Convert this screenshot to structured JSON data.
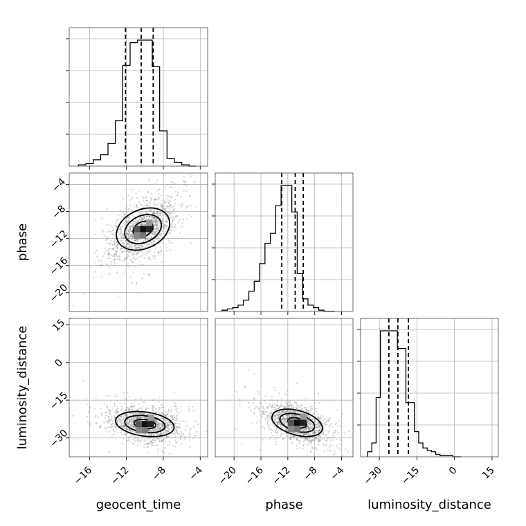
{
  "chart_data": {
    "type": "corner",
    "parameters": [
      "geocent_time",
      "phase",
      "luminosity_distance"
    ],
    "axis_labels": {
      "geocent_time": "geocent_time",
      "phase": "phase",
      "luminosity_distance": "luminosity_distance"
    },
    "ranges": {
      "geocent_time": [
        -18.2,
        -3.2
      ],
      "phase": [
        -22.8,
        -2.3
      ],
      "luminosity_distance": [
        -37.5,
        17.5
      ]
    },
    "ticks": {
      "geocent_time": [
        -16,
        -12,
        -8,
        -4
      ],
      "phase": [
        -20,
        -16,
        -12,
        -8,
        -4
      ],
      "luminosity_distance": [
        -30,
        -15,
        0,
        15
      ]
    },
    "tick_labels": {
      "geocent_time": [
        "−16",
        "−12",
        "−8",
        "−4"
      ],
      "phase": [
        "−20",
        "−16",
        "−12",
        "−8",
        "−4"
      ],
      "luminosity_distance": [
        "−30",
        "−15",
        "0",
        "15"
      ]
    },
    "histograms": {
      "geocent_time": {
        "bin_edges": [
          -17.2,
          -16.4,
          -15.6,
          -14.8,
          -14.0,
          -13.2,
          -12.4,
          -11.6,
          -10.8,
          -10.0,
          -9.2,
          -8.4,
          -7.6,
          -6.8,
          -6.0,
          -5.2,
          -4.4
        ],
        "counts": [
          1,
          2,
          5,
          9,
          18,
          36,
          80,
          98,
          100,
          100,
          79,
          28,
          6,
          3,
          1,
          0
        ]
      },
      "phase": {
        "bin_edges": [
          -21.8,
          -21.0,
          -20.2,
          -19.4,
          -18.6,
          -17.8,
          -17.0,
          -16.2,
          -15.4,
          -14.6,
          -13.8,
          -13.0,
          -12.2,
          -11.4,
          -10.6,
          -9.8,
          -9.0,
          -8.2,
          -7.4,
          -6.6,
          -5.8,
          -5.0
        ],
        "counts": [
          1,
          2,
          3,
          5,
          9,
          16,
          24,
          38,
          54,
          62,
          84,
          100,
          100,
          79,
          30,
          10,
          5,
          3,
          1,
          0,
          0
        ]
      },
      "luminosity_distance": {
        "bin_edges": [
          -34.7,
          -33.0,
          -31.3,
          -29.6,
          -27.9,
          -26.2,
          -24.5,
          -22.8,
          -21.1,
          -19.4,
          -17.7,
          -16.0,
          -14.3,
          -12.6,
          -10.9,
          -9.2,
          -7.5,
          -5.8,
          -4.1,
          -2.4,
          -0.7,
          1.0,
          2.7
        ],
        "counts": [
          4,
          11,
          47,
          100,
          100,
          100,
          100,
          86,
          86,
          43,
          43,
          20,
          11,
          7,
          5,
          4,
          2,
          1,
          1,
          1,
          0,
          0
        ]
      }
    },
    "quantiles": {
      "geocent_time": [
        -12.1,
        -10.4,
        -9.1
      ],
      "phase": [
        -12.9,
        -10.9,
        -9.7
      ],
      "luminosity_distance": [
        -26.2,
        -22.6,
        -18.4
      ]
    },
    "pair_plots": [
      {
        "x": "geocent_time",
        "y": "phase",
        "center": [
          -10.2,
          -10.6
        ],
        "sigma": [
          1.8,
          2.3
        ],
        "correlation": 0.55,
        "contour_levels": [
          0.6,
          1.1,
          1.6
        ]
      },
      {
        "x": "geocent_time",
        "y": "luminosity_distance",
        "center": [
          -10.0,
          -24.5
        ],
        "sigma": [
          1.9,
          3.4
        ],
        "correlation": -0.3,
        "contour_levels": [
          0.6,
          1.1,
          1.6
        ]
      },
      {
        "x": "phase",
        "y": "luminosity_distance",
        "center": [
          -10.6,
          -24.0
        ],
        "sigma": [
          2.3,
          3.8
        ],
        "correlation": -0.5,
        "contour_levels": [
          0.6,
          1.1,
          1.6
        ]
      }
    ],
    "grid": true
  }
}
